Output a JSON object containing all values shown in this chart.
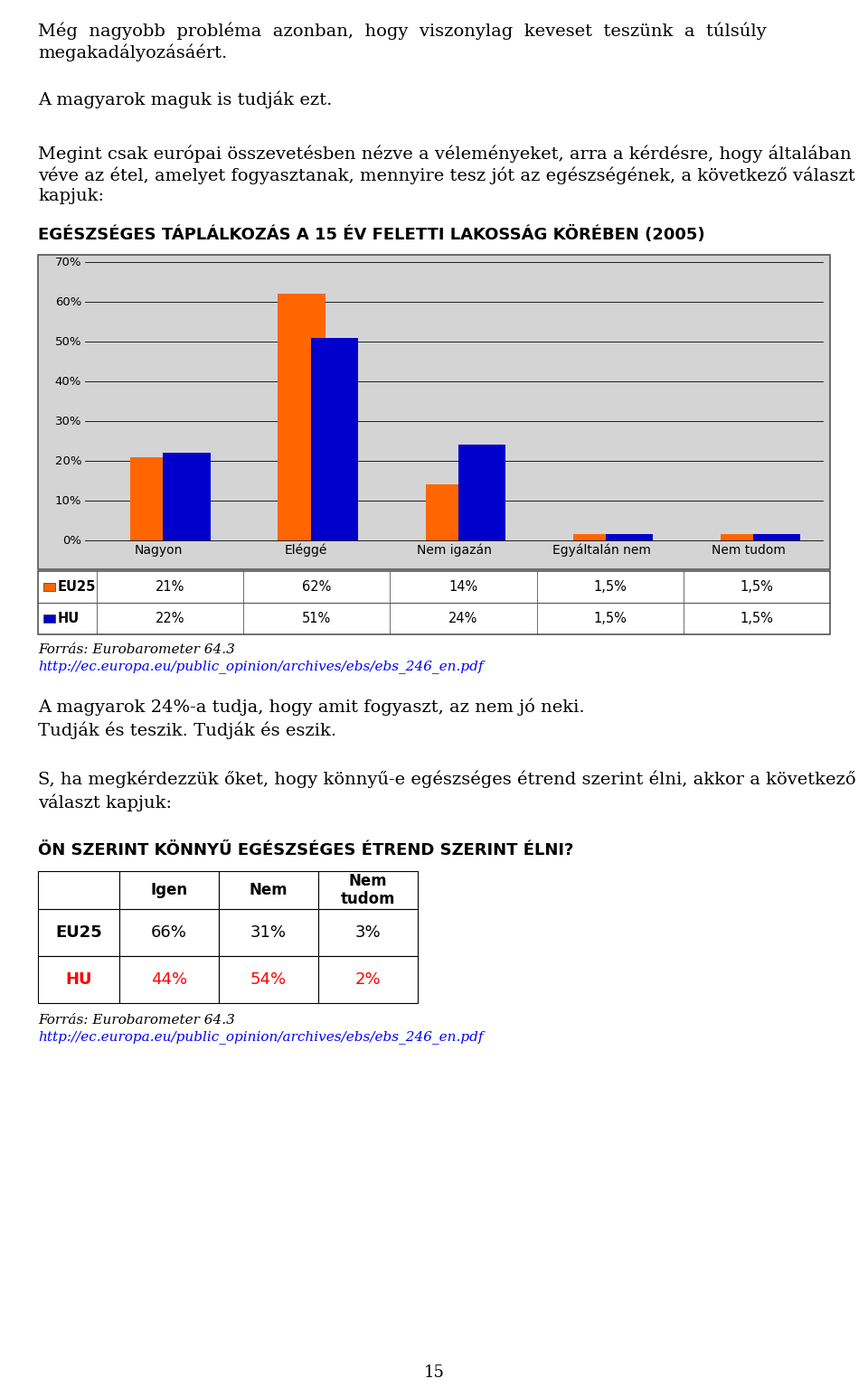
{
  "categories": [
    "Nagyon",
    "Eléggé",
    "Nem igazán",
    "Egyáltalán nem",
    "Nem tudom"
  ],
  "eu25_values": [
    21,
    62,
    14,
    1.5,
    1.5
  ],
  "hu_values": [
    22,
    51,
    24,
    1.5,
    1.5
  ],
  "eu25_color": "#FF6600",
  "hu_color": "#0000CC",
  "eu25_label": "EU25",
  "hu_label": "HU",
  "eu25_table_values": [
    "21%",
    "62%",
    "14%",
    "1,5%",
    "1,5%"
  ],
  "hu_table_values": [
    "22%",
    "51%",
    "24%",
    "1,5%",
    "1,5%"
  ],
  "yticks": [
    0,
    10,
    20,
    30,
    40,
    50,
    60,
    70
  ],
  "ytick_labels": [
    "0%",
    "10%",
    "20%",
    "30%",
    "40%",
    "50%",
    "60%",
    "70%"
  ],
  "chart_bg": "#D4D4D4",
  "para1": "Még  nagyobb  probléma  azonban,  hogy  viszonylag  keveset  teszünk  a  túlsúly\nmegakadályozásáért.",
  "para2": "A magyarok maguk is tudják ezt.",
  "para3": "Megint csak európai összevetésben nézve a véleményeket, arra a kérdésre, hogy általában\nvéve az étel, amelyet fogyasztanak, mennyire tesz jót az egészségének, a következő választ\nkapjuk:",
  "section_title": "EGÉSZSÉGES TÁPLÁLKOZÁS A 15 ÉV FELETTI LAKOSSÁG KÖRÉBEN (2005)",
  "forras1a": "Forrás: Eurobarometer 64.3",
  "forras1b": "http://ec.europa.eu/public_opinion/archives/ebs/ebs_246_en.pdf",
  "para4": "A magyarok 24%-a tudja, hogy amit fogyaszt, az nem jó neki.\nTudják és teszik. Tudják és eszik.",
  "para5": "S, ha megkérdezzük őket, hogy könnyű-e egészséges étrend szerint élni, akkor a következő\nválaszt kapjuk:",
  "table2_title": "ÖN SZERINT KÖNNYŰ EGÉSZSÉGES ÉTREND SZERINT ÉLNI?",
  "table2_col_headers": [
    "Igen",
    "Nem",
    "Nem\ntudom"
  ],
  "table2_rows": [
    [
      "EU25",
      "66%",
      "31%",
      "3%"
    ],
    [
      "HU",
      "44%",
      "54%",
      "2%"
    ]
  ],
  "hu_color_red": "#FF0000",
  "forras2a": "Forrás: Eurobarometer 64.3",
  "forras2b": "http://ec.europa.eu/public_opinion/archives/ebs/ebs_246_en.pdf",
  "page_number": "15"
}
